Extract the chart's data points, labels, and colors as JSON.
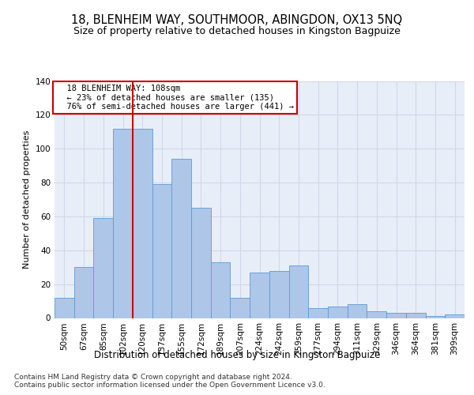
{
  "title1": "18, BLENHEIM WAY, SOUTHMOOR, ABINGDON, OX13 5NQ",
  "title2": "Size of property relative to detached houses in Kingston Bagpuize",
  "xlabel": "Distribution of detached houses by size in Kingston Bagpuize",
  "ylabel": "Number of detached properties",
  "footnote": "Contains HM Land Registry data © Crown copyright and database right 2024.\nContains public sector information licensed under the Open Government Licence v3.0.",
  "categories": [
    "50sqm",
    "67sqm",
    "85sqm",
    "102sqm",
    "120sqm",
    "137sqm",
    "155sqm",
    "172sqm",
    "189sqm",
    "207sqm",
    "224sqm",
    "242sqm",
    "259sqm",
    "277sqm",
    "294sqm",
    "311sqm",
    "329sqm",
    "346sqm",
    "364sqm",
    "381sqm",
    "399sqm"
  ],
  "values": [
    12,
    30,
    59,
    112,
    112,
    79,
    94,
    65,
    33,
    12,
    27,
    28,
    31,
    6,
    7,
    8,
    4,
    3,
    3,
    1,
    2
  ],
  "bar_color": "#aec6e8",
  "bar_edge_color": "#5b9bd5",
  "annotation_text": "  18 BLENHEIM WAY: 108sqm\n  ← 23% of detached houses are smaller (135)\n  76% of semi-detached houses are larger (441) →",
  "annotation_box_color": "#ffffff",
  "annotation_box_edge": "#cc0000",
  "vline_color": "#cc0000",
  "vline_x": 3.5,
  "ylim": [
    0,
    140
  ],
  "yticks": [
    0,
    20,
    40,
    60,
    80,
    100,
    120,
    140
  ],
  "grid_color": "#d0d8e8",
  "bg_color": "#e8eef8",
  "title1_fontsize": 10.5,
  "title2_fontsize": 9,
  "xlabel_fontsize": 8.5,
  "ylabel_fontsize": 8,
  "tick_fontsize": 7.5,
  "footnote_fontsize": 6.5,
  "annotation_fontsize": 7.5
}
